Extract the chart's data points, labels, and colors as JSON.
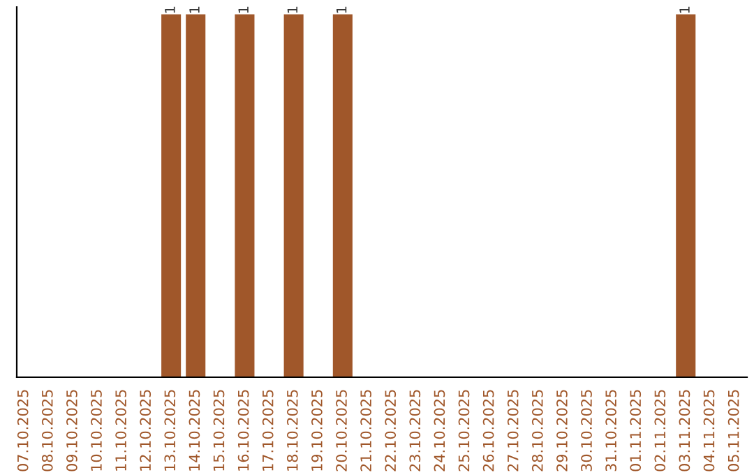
{
  "chart_data": {
    "type": "bar",
    "categories": [
      "07.10.2025",
      "08.10.2025",
      "09.10.2025",
      "10.10.2025",
      "11.10.2025",
      "12.10.2025",
      "13.10.2025",
      "14.10.2025",
      "15.10.2025",
      "16.10.2025",
      "17.10.2025",
      "18.10.2025",
      "19.10.2025",
      "20.10.2025",
      "21.10.2025",
      "22.10.2025",
      "23.10.2025",
      "24.10.2025",
      "25.10.2025",
      "26.10.2025",
      "27.10.2025",
      "28.10.2025",
      "29.10.2025",
      "30.10.2025",
      "31.10.2025",
      "01.11.2025",
      "02.11.2025",
      "03.11.2025",
      "04.11.2025",
      "05.11.2025"
    ],
    "values": [
      0,
      0,
      0,
      0,
      0,
      0,
      1,
      1,
      0,
      1,
      0,
      1,
      0,
      1,
      0,
      0,
      0,
      0,
      0,
      0,
      0,
      0,
      0,
      0,
      0,
      0,
      0,
      1,
      0,
      0
    ],
    "value_labels": [
      null,
      null,
      null,
      null,
      null,
      null,
      "1",
      "1",
      null,
      "1",
      null,
      "1",
      null,
      "1",
      null,
      null,
      null,
      null,
      null,
      null,
      null,
      null,
      null,
      null,
      null,
      null,
      null,
      "1",
      null,
      null
    ],
    "color": "#a0572a",
    "tick_labels": "x",
    "grid": false,
    "legend": false
  }
}
